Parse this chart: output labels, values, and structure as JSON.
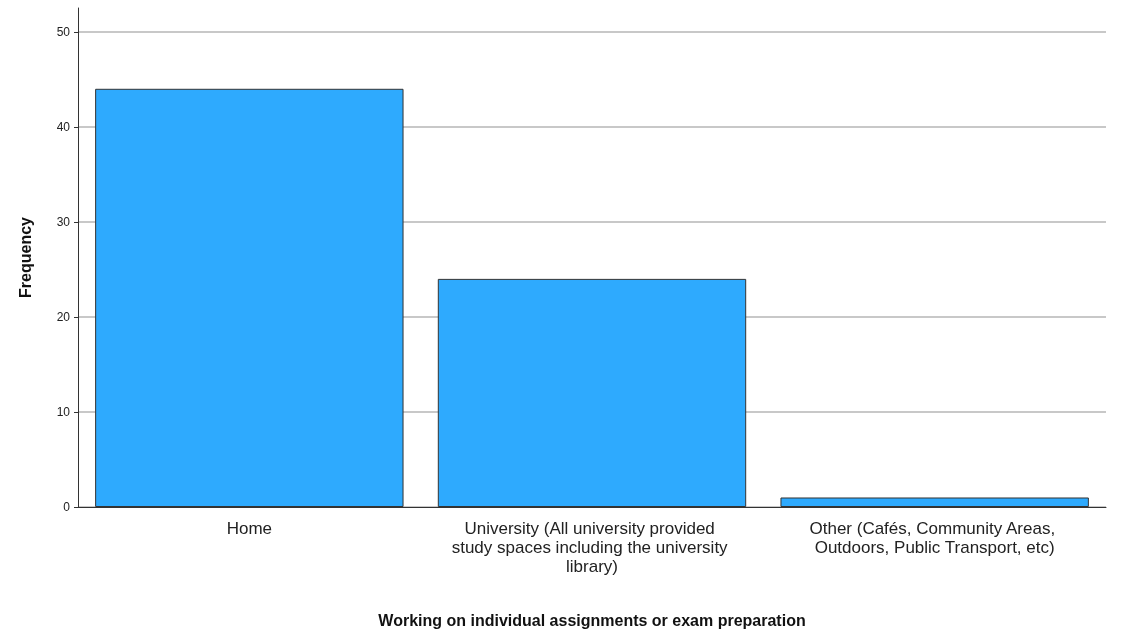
{
  "chart_data": {
    "type": "bar",
    "xlabel": "Working on individual assignments or exam preparation",
    "ylabel": "Frequency",
    "categories": [
      "Home",
      "University (All university provided study spaces including the university library)",
      "Other (Cafés, Community Areas, Outdoors, Public Transport, etc)"
    ],
    "values": [
      44,
      24,
      1
    ],
    "color": "#2eaafe",
    "ylim": [
      0,
      52.5
    ],
    "yticks": [
      0,
      10,
      20,
      30,
      40,
      50
    ],
    "grid": "y"
  }
}
